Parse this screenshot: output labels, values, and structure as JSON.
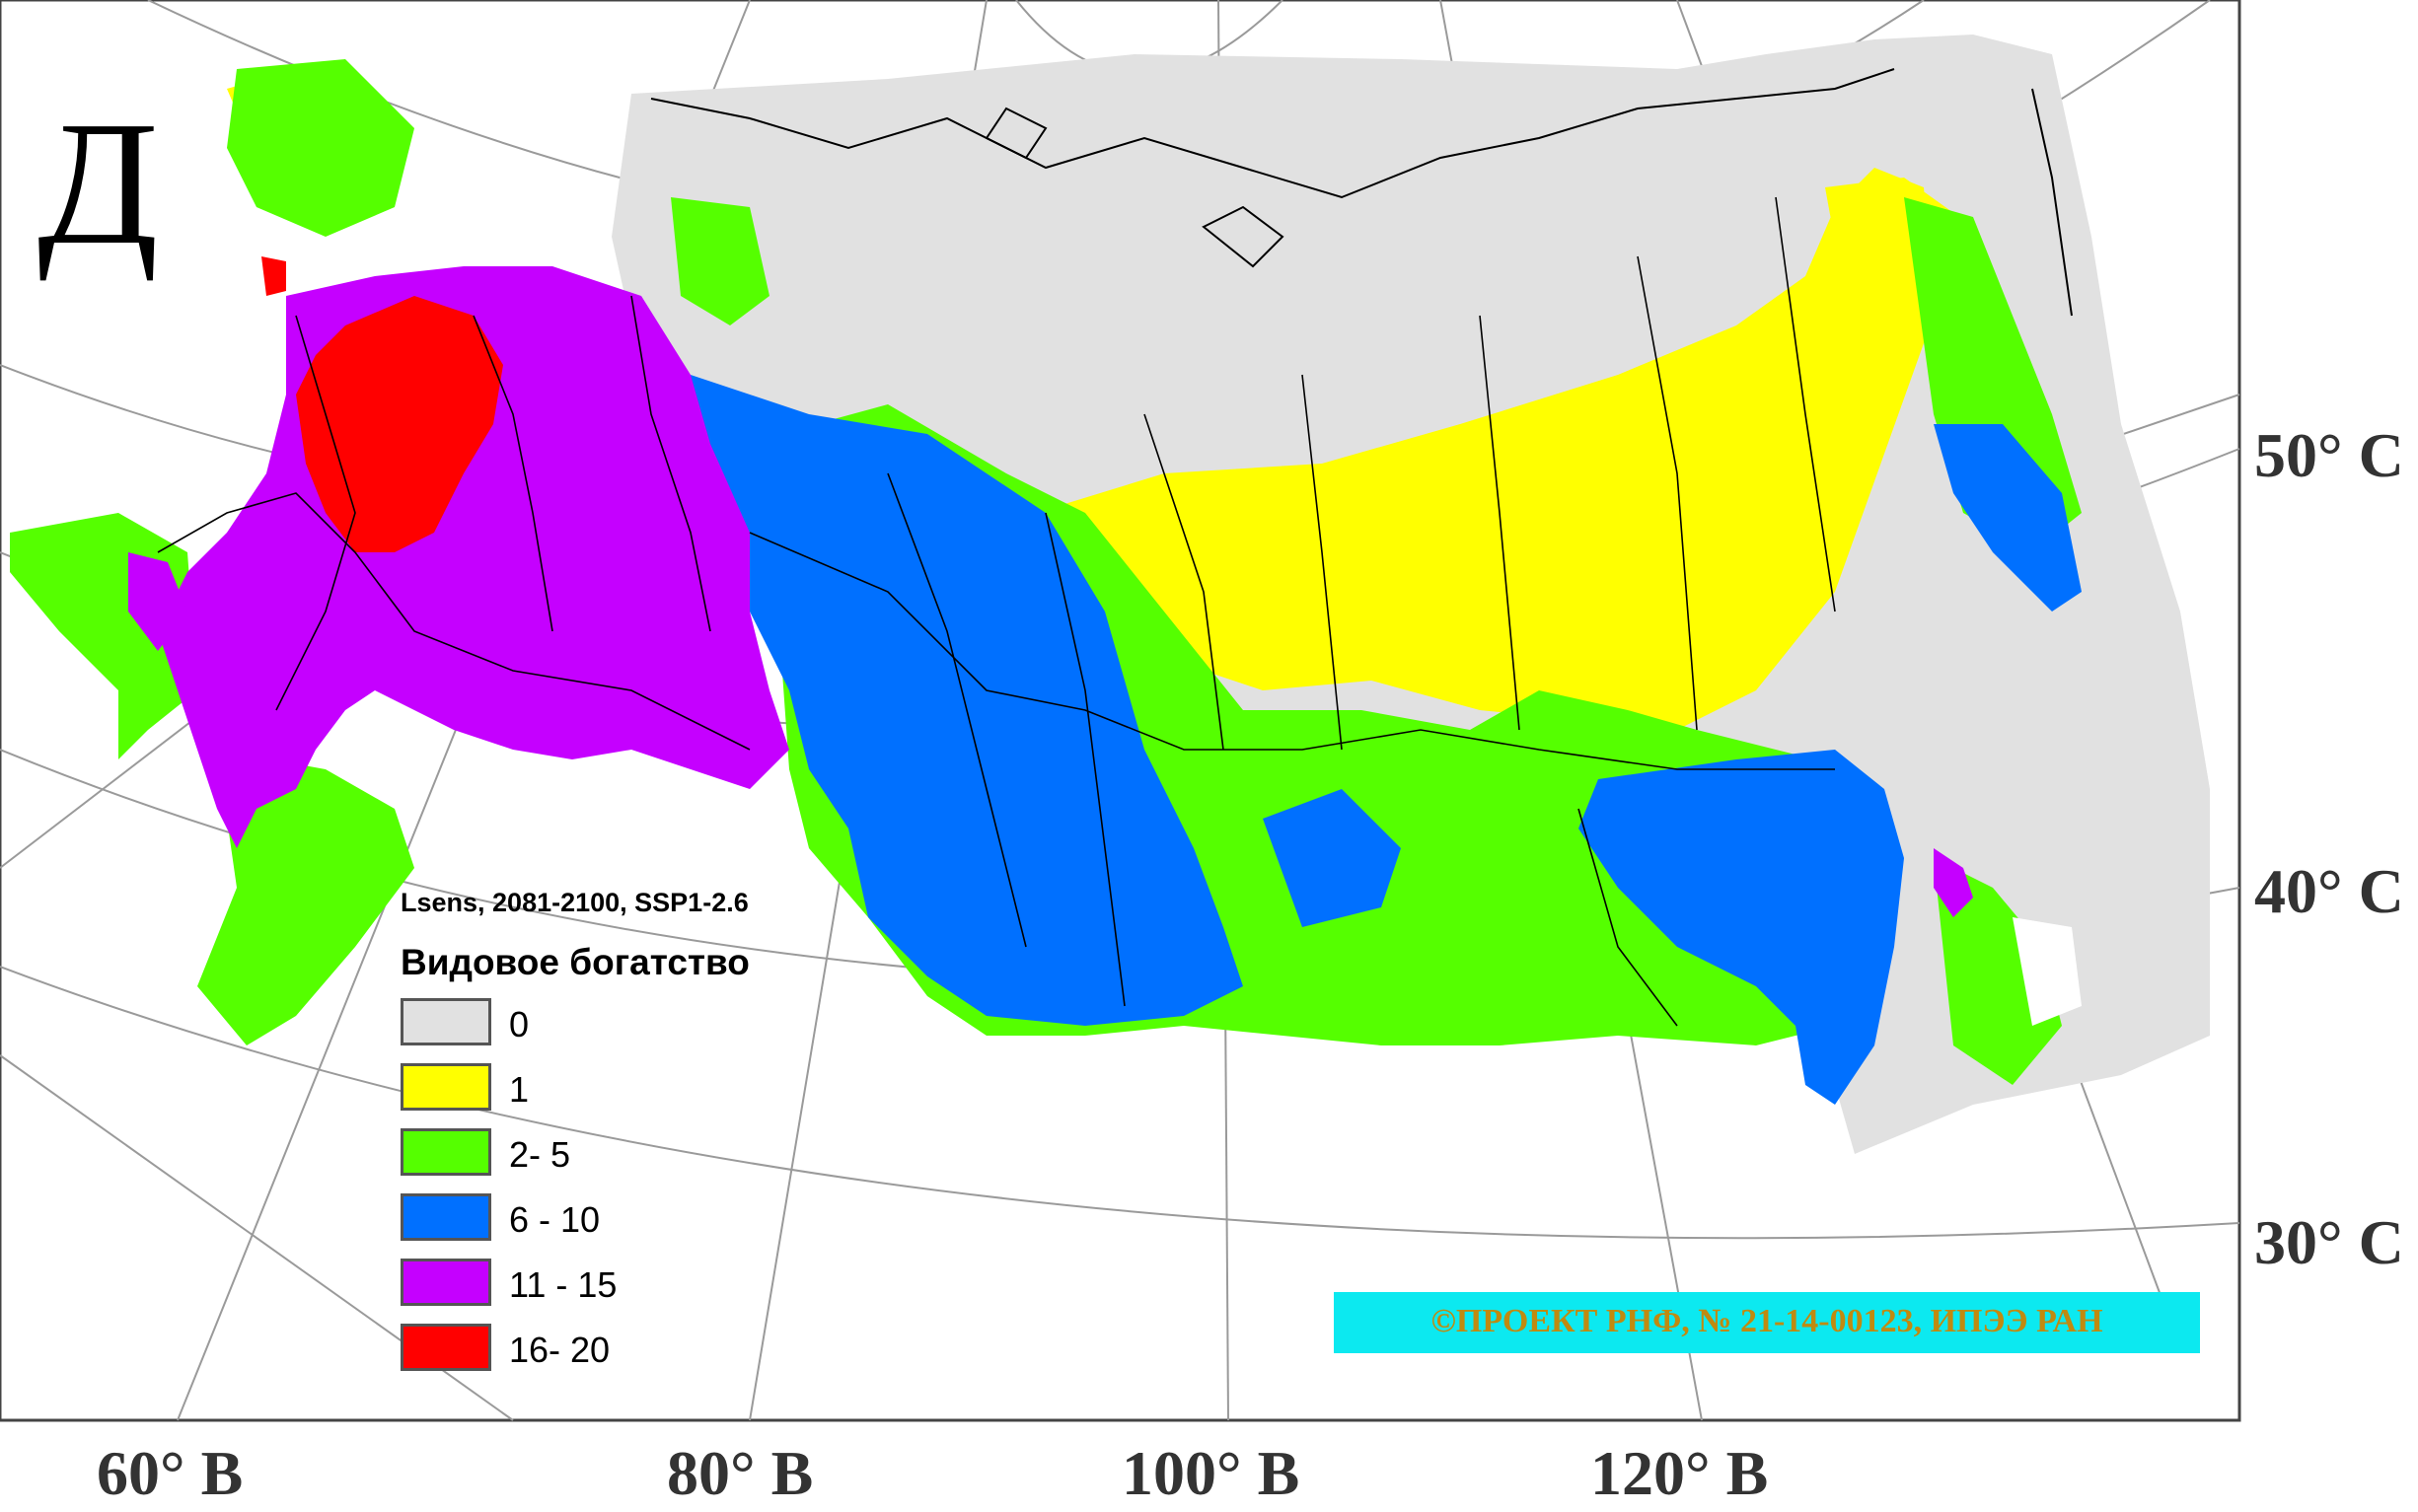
{
  "panel_letter": "Д",
  "legend": {
    "subtitle": "Lsens, 2081-2100, SSP1-2.6",
    "title": "Видовое богатство",
    "items": [
      {
        "label": "0",
        "color": "#e1e1e1"
      },
      {
        "label": "1",
        "color": "#ffff00"
      },
      {
        "label": "2- 5",
        "color": "#55ff00"
      },
      {
        "label": "6 - 10",
        "color": "#0070ff"
      },
      {
        "label": "11 - 15",
        "color": "#c500ff"
      },
      {
        "label": "16- 20",
        "color": "#ff0000"
      }
    ]
  },
  "longitude_labels": [
    "60° В",
    "80° В",
    "100° В",
    "120° В"
  ],
  "latitude_labels": [
    "50° С",
    "40° С",
    "30° С"
  ],
  "credit": "©ПРОЕКТ РНФ, № 21-14-00123, ИПЭЭ РАН"
}
